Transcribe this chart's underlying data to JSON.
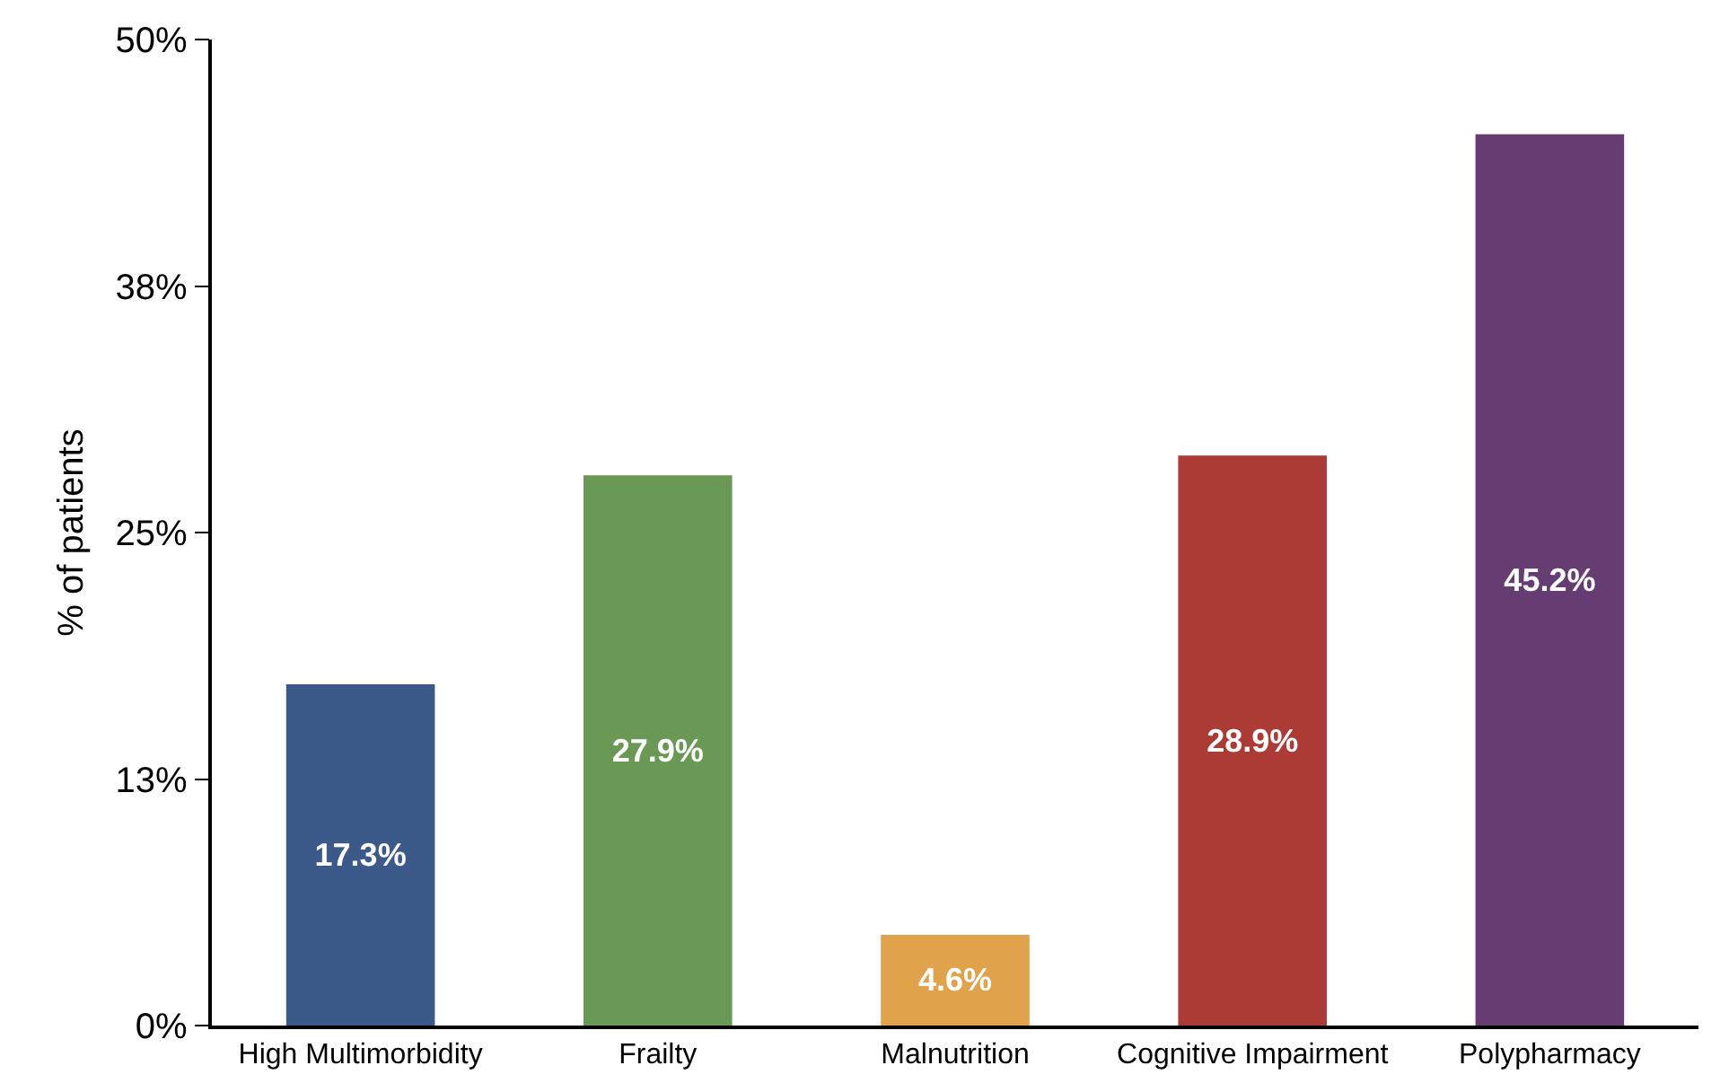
{
  "chart_data": {
    "type": "bar",
    "ylabel": "% of patients",
    "categories": [
      "High Multimorbidity",
      "Frailty",
      "Malnutrition",
      "Cognitive Impairment",
      "Polypharmacy"
    ],
    "values": [
      17.3,
      27.9,
      4.6,
      28.9,
      45.2
    ],
    "colors": [
      "#3b5a8a",
      "#6a9955",
      "#e0a24b",
      "#ad3b35",
      "#653d72"
    ],
    "value_labels": [
      "17.3%",
      "27.9%",
      "4.6%",
      "28.9%",
      "45.2%"
    ],
    "ylim": [
      0,
      50
    ],
    "yticks": [
      {
        "value": 0,
        "label": "0%"
      },
      {
        "value": 12.5,
        "label": "13%"
      },
      {
        "value": 25,
        "label": "25%"
      },
      {
        "value": 37.5,
        "label": "38%"
      },
      {
        "value": 50,
        "label": "50%"
      }
    ]
  }
}
